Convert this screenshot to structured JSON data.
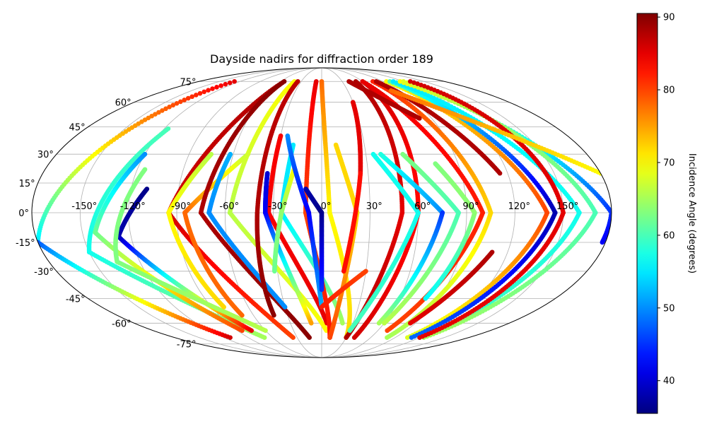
{
  "chart_data": {
    "type": "scatter",
    "projection": "mollweide",
    "title": "Dayside nadirs for diffraction order 189",
    "xlabel": "",
    "ylabel": "",
    "lon_ticks": [
      "-150°",
      "-120°",
      "-90°",
      "-60°",
      "-30°",
      "0°",
      "30°",
      "60°",
      "90°",
      "120°",
      "150°"
    ],
    "lat_ticks": [
      "75°",
      "60°",
      "45°",
      "30°",
      "15°",
      "0°",
      "-15°",
      "-30°",
      "-45°",
      "-60°",
      "-75°"
    ],
    "grid": true,
    "colorbar": {
      "label": "Incidence Angle (degrees)",
      "colormap": "jet",
      "vmin": 35.5,
      "vmax": 90.5,
      "ticks": [
        "40",
        "50",
        "60",
        "70",
        "80",
        "90"
      ]
    },
    "tracks": [
      {
        "lon_start": -128,
        "lon_end": -180,
        "lat_start": 75,
        "lat_end": -15,
        "inc_start": 85,
        "inc_end": 55
      },
      {
        "lon_start": -180,
        "lon_end": -112,
        "lat_start": -15,
        "lat_end": -70,
        "inc_start": 47,
        "inc_end": 86
      },
      {
        "lon_start": -117,
        "lon_end": -150,
        "lat_start": 44,
        "lat_end": -20,
        "inc_start": 60,
        "inc_end": 57
      },
      {
        "lon_start": -150,
        "lon_end": -70,
        "lat_start": -20,
        "lat_end": -70,
        "inc_start": 57,
        "inc_end": 65
      },
      {
        "lon_start": -120,
        "lon_end": -142,
        "lat_start": 30,
        "lat_end": -10,
        "inc_start": 50,
        "inc_end": 62
      },
      {
        "lon_start": -142,
        "lon_end": -85,
        "lat_start": -10,
        "lat_end": -65,
        "inc_start": 62,
        "inc_end": 80
      },
      {
        "lon_start": -110,
        "lon_end": -128,
        "lat_start": 12,
        "lat_end": -12,
        "inc_start": 36,
        "inc_end": 38
      },
      {
        "lon_start": -128,
        "lon_end": -75,
        "lat_start": -12,
        "lat_end": -65,
        "inc_start": 38,
        "inc_end": 85
      },
      {
        "lon_start": -115,
        "lon_end": -135,
        "lat_start": 22,
        "lat_end": -25,
        "inc_start": 63,
        "inc_end": 63
      },
      {
        "lon_start": -135,
        "lon_end": -60,
        "lat_start": -25,
        "lat_end": -65,
        "inc_start": 63,
        "inc_end": 66
      },
      {
        "lon_start": -55,
        "lon_end": -95,
        "lat_start": 75,
        "lat_end": 0,
        "inc_start": 88,
        "inc_end": 86
      },
      {
        "lon_start": -95,
        "lon_end": -35,
        "lat_start": 0,
        "lat_end": -70,
        "inc_start": 86,
        "inc_end": 80
      },
      {
        "lon_start": -75,
        "lon_end": -95,
        "lat_start": 30,
        "lat_end": 0,
        "inc_start": 66,
        "inc_end": 70
      },
      {
        "lon_start": -95,
        "lon_end": -80,
        "lat_start": 0,
        "lat_end": -50,
        "inc_start": 70,
        "inc_end": 72
      },
      {
        "lon_start": -50,
        "lon_end": -85,
        "lat_start": 30,
        "lat_end": 0,
        "inc_start": 66,
        "inc_end": 78
      },
      {
        "lon_start": -85,
        "lon_end": -70,
        "lat_start": 0,
        "lat_end": -55,
        "inc_start": 78,
        "inc_end": 78
      },
      {
        "lon_start": -55,
        "lon_end": -75,
        "lat_start": 75,
        "lat_end": 0,
        "inc_start": 90,
        "inc_end": 88
      },
      {
        "lon_start": -75,
        "lon_end": -15,
        "lat_start": 0,
        "lat_end": -70,
        "inc_start": 88,
        "inc_end": 90
      },
      {
        "lon_start": -40,
        "lon_end": -57,
        "lat_start": 75,
        "lat_end": 0,
        "inc_start": 70,
        "inc_end": 66
      },
      {
        "lon_start": -57,
        "lon_end": 5,
        "lat_start": 0,
        "lat_end": -65,
        "inc_start": 66,
        "inc_end": 70
      },
      {
        "lon_start": -62,
        "lon_end": -70,
        "lat_start": 30,
        "lat_end": 0,
        "inc_start": 52,
        "inc_end": 50
      },
      {
        "lon_start": -70,
        "lon_end": -30,
        "lat_start": 0,
        "lat_end": -50,
        "inc_start": 50,
        "inc_end": 50
      },
      {
        "lon_start": -35,
        "lon_end": -40,
        "lat_start": 75,
        "lat_end": 0,
        "inc_start": 87,
        "inc_end": 88
      },
      {
        "lon_start": -40,
        "lon_end": -42,
        "lat_start": 0,
        "lat_end": -55,
        "inc_start": 88,
        "inc_end": 90
      },
      {
        "lon_start": -30,
        "lon_end": -33,
        "lat_start": 40,
        "lat_end": 0,
        "inc_start": 84,
        "inc_end": 84
      },
      {
        "lon_start": -33,
        "lon_end": 5,
        "lat_start": 0,
        "lat_end": -60,
        "inc_start": 84,
        "inc_end": 85
      },
      {
        "lon_start": -35,
        "lon_end": -35,
        "lat_start": 20,
        "lat_end": 0,
        "inc_start": 40,
        "inc_end": 42
      },
      {
        "lon_start": -35,
        "lon_end": -10,
        "lat_start": 0,
        "lat_end": -60,
        "inc_start": 42,
        "inc_end": 75
      },
      {
        "lon_start": -20,
        "lon_end": -25,
        "lat_start": 35,
        "lat_end": 0,
        "inc_start": 55,
        "inc_end": 55
      },
      {
        "lon_start": -25,
        "lon_end": 20,
        "lat_start": 0,
        "lat_end": -60,
        "inc_start": 55,
        "inc_end": 65
      },
      {
        "lon_start": -18,
        "lon_end": -25,
        "lat_start": 22,
        "lat_end": 0,
        "inc_start": 70,
        "inc_end": 64
      },
      {
        "lon_start": -25,
        "lon_end": -32,
        "lat_start": 0,
        "lat_end": -30,
        "inc_start": 64,
        "inc_end": 62
      },
      {
        "lon_start": -8,
        "lon_end": -10,
        "lat_start": 75,
        "lat_end": 0,
        "inc_start": 85,
        "inc_end": 80
      },
      {
        "lon_start": -10,
        "lon_end": 10,
        "lat_start": 0,
        "lat_end": -70,
        "inc_start": 80,
        "inc_end": 83
      },
      {
        "lon_start": 0,
        "lon_end": 5,
        "lat_start": 75,
        "lat_end": 0,
        "inc_start": 78,
        "inc_end": 70
      },
      {
        "lon_start": 5,
        "lon_end": 30,
        "lat_start": 0,
        "lat_end": -70,
        "inc_start": 70,
        "inc_end": 72
      },
      {
        "lon_start": -25,
        "lon_end": -8,
        "lat_start": 40,
        "lat_end": 0,
        "inc_start": 50,
        "inc_end": 42
      },
      {
        "lon_start": -8,
        "lon_end": 0,
        "lat_start": 0,
        "lat_end": -50,
        "inc_start": 42,
        "inc_end": 52
      },
      {
        "lon_start": -10,
        "lon_end": 0,
        "lat_start": 12,
        "lat_end": 0,
        "inc_start": 38,
        "inc_end": 36
      },
      {
        "lon_start": 0,
        "lon_end": 0,
        "lat_start": 0,
        "lat_end": -40,
        "inc_start": 36,
        "inc_end": 45
      },
      {
        "lon_start": 10,
        "lon_end": 22,
        "lat_start": 35,
        "lat_end": 0,
        "inc_start": 72,
        "inc_end": 72
      },
      {
        "lon_start": 22,
        "lon_end": 10,
        "lat_start": 0,
        "lat_end": -70,
        "inc_start": 72,
        "inc_end": 80
      },
      {
        "lon_start": 30,
        "lon_end": 25,
        "lat_start": 60,
        "lat_end": 20,
        "inc_start": 85,
        "inc_end": 85
      },
      {
        "lon_start": 25,
        "lon_end": 15,
        "lat_start": 20,
        "lat_end": -30,
        "inc_start": 83,
        "inc_end": 83
      },
      {
        "lon_start": 30,
        "lon_end": 0,
        "lat_start": -30,
        "lat_end": -50,
        "inc_start": 80,
        "inc_end": 82
      },
      {
        "lon_start": 50,
        "lon_end": 50,
        "lat_start": 75,
        "lat_end": 0,
        "inc_start": 88,
        "inc_end": 85
      },
      {
        "lon_start": 50,
        "lon_end": 30,
        "lat_start": 0,
        "lat_end": -70,
        "inc_start": 85,
        "inc_end": 88
      },
      {
        "lon_start": 60,
        "lon_end": 60,
        "lat_start": 75,
        "lat_end": 0,
        "inc_start": 86,
        "inc_end": 83
      },
      {
        "lon_start": 60,
        "lon_end": 40,
        "lat_start": 0,
        "lat_end": -70,
        "inc_start": 83,
        "inc_end": 86
      },
      {
        "lon_start": 35,
        "lon_end": 60,
        "lat_start": 30,
        "lat_end": 0,
        "inc_start": 57,
        "inc_end": 57
      },
      {
        "lon_start": 60,
        "lon_end": 30,
        "lat_start": 0,
        "lat_end": -65,
        "inc_start": 57,
        "inc_end": 60
      },
      {
        "lon_start": 40,
        "lon_end": 75,
        "lat_start": 30,
        "lat_end": 0,
        "inc_start": 58,
        "inc_end": 50
      },
      {
        "lon_start": 75,
        "lon_end": 55,
        "lat_start": 0,
        "lat_end": -60,
        "inc_start": 45,
        "inc_end": 65
      },
      {
        "lon_start": 60,
        "lon_end": 100,
        "lat_start": 75,
        "lat_end": 0,
        "inc_start": 85,
        "inc_end": 82
      },
      {
        "lon_start": 100,
        "lon_end": 70,
        "lat_start": 0,
        "lat_end": -65,
        "inc_start": 82,
        "inc_end": 80
      },
      {
        "lon_start": 55,
        "lon_end": 85,
        "lat_start": 30,
        "lat_end": 0,
        "inc_start": 63,
        "inc_end": 60
      },
      {
        "lon_start": 85,
        "lon_end": 60,
        "lat_start": 0,
        "lat_end": -60,
        "inc_start": 60,
        "inc_end": 66
      },
      {
        "lon_start": 75,
        "lon_end": 95,
        "lat_start": 25,
        "lat_end": 0,
        "inc_start": 63,
        "inc_end": 64
      },
      {
        "lon_start": 95,
        "lon_end": 80,
        "lat_start": 0,
        "lat_end": -45,
        "inc_start": 64,
        "inc_end": 56
      },
      {
        "lon_start": 75,
        "lon_end": 105,
        "lat_start": 75,
        "lat_end": 0,
        "inc_start": 82,
        "inc_end": 72
      },
      {
        "lon_start": 105,
        "lon_end": 80,
        "lat_start": 0,
        "lat_end": -70,
        "inc_start": 72,
        "inc_end": 65
      },
      {
        "lon_start": 80,
        "lon_end": 115,
        "lat_start": 75,
        "lat_end": 20,
        "inc_start": 88,
        "inc_end": 88
      },
      {
        "lon_start": 110,
        "lon_end": 85,
        "lat_start": -20,
        "lat_end": -60,
        "inc_start": 88,
        "inc_end": 85
      },
      {
        "lon_start": 95,
        "lon_end": 140,
        "lat_start": 75,
        "lat_end": 0,
        "inc_start": 70,
        "inc_end": 80
      },
      {
        "lon_start": 140,
        "lon_end": 105,
        "lat_start": 0,
        "lat_end": -70,
        "inc_start": 80,
        "inc_end": 68
      },
      {
        "lon_start": 100,
        "lon_end": 145,
        "lat_start": 75,
        "lat_end": 0,
        "inc_start": 60,
        "inc_end": 38
      },
      {
        "lon_start": 145,
        "lon_end": 110,
        "lat_start": 0,
        "lat_end": -70,
        "inc_start": 38,
        "inc_end": 48
      },
      {
        "lon_start": 105,
        "lon_end": 160,
        "lat_start": 75,
        "lat_end": 0,
        "inc_start": 55,
        "inc_end": 57
      },
      {
        "lon_start": 160,
        "lon_end": 120,
        "lat_start": 0,
        "lat_end": -70,
        "inc_start": 57,
        "inc_end": 60
      },
      {
        "lon_start": 115,
        "lon_end": 180,
        "lat_start": 75,
        "lat_end": 0,
        "inc_start": 70,
        "inc_end": 45
      },
      {
        "lon_start": 180,
        "lon_end": 178,
        "lat_start": 0,
        "lat_end": -15,
        "inc_start": 45,
        "inc_end": 42
      },
      {
        "lon_start": 120,
        "lon_end": 170,
        "lat_start": 75,
        "lat_end": 0,
        "inc_start": 68,
        "inc_end": 60
      },
      {
        "lon_start": 170,
        "lon_end": 125,
        "lat_start": 0,
        "lat_end": -70,
        "inc_start": 60,
        "inc_end": 65
      },
      {
        "lon_start": 130,
        "lon_end": 150,
        "lat_start": 75,
        "lat_end": 0,
        "inc_start": 86,
        "inc_end": 85
      },
      {
        "lon_start": 150,
        "lon_end": 120,
        "lat_start": 0,
        "lat_end": -70,
        "inc_start": 85,
        "inc_end": 85
      },
      {
        "lon_start": 40,
        "lon_end": 80,
        "lat_start": 75,
        "lat_end": 50,
        "inc_start": 88,
        "inc_end": 88
      },
      {
        "lon_start": 80,
        "lon_end": 180,
        "lat_start": 68,
        "lat_end": 20,
        "inc_start": 78,
        "inc_end": 70
      }
    ]
  }
}
